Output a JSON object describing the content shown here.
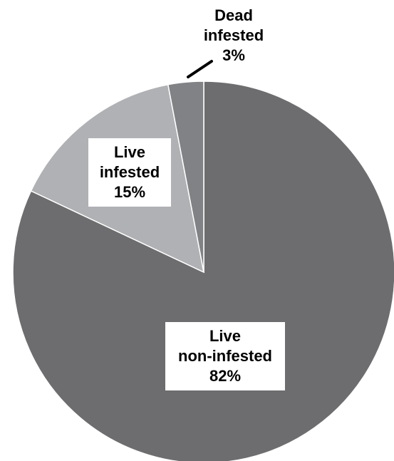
{
  "chart_data": {
    "type": "pie",
    "title": "",
    "slices": [
      {
        "label_lines": [
          "Live",
          "non-infested"
        ],
        "percent_label": "82%",
        "value": 82,
        "color": "#6d6d6f"
      },
      {
        "label_lines": [
          "Live",
          "infested"
        ],
        "percent_label": "15%",
        "value": 15,
        "color": "#b0b1b4"
      },
      {
        "label_lines": [
          "Dead",
          "infested"
        ],
        "percent_label": "3%",
        "value": 3,
        "color": "#818285"
      }
    ],
    "start_angle": "12 o'clock",
    "direction": "clockwise",
    "legend": "none",
    "slice_border_color": "#ffffff"
  }
}
